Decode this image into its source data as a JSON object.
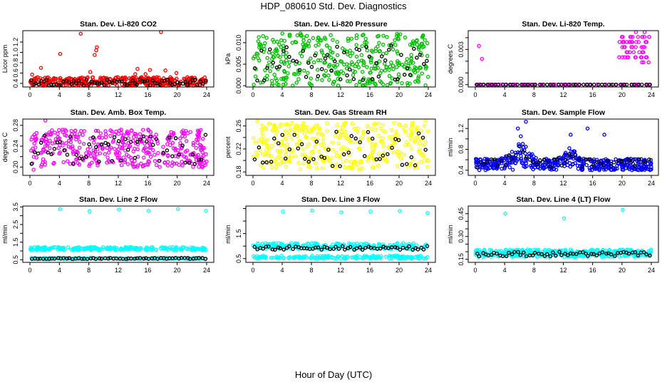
{
  "page": {
    "title": "HDP_080610  Std. Dev. Diagnostics",
    "xlabel": "Hour of Day (UTC)"
  },
  "chart_data": [
    {
      "type": "scatter",
      "title": "Stan. Dev. Li-820 CO2",
      "ylabel": "Licor ppm",
      "xlim": [
        0,
        24
      ],
      "xticks": [
        0,
        4,
        8,
        12,
        16,
        20,
        24
      ],
      "ylim": [
        0.33,
        1.42
      ],
      "yticks": [
        0.4,
        0.6,
        0.8,
        1.0,
        1.2
      ],
      "ytick_labels": [
        "0.4",
        "0.6",
        "0.8",
        "1.0",
        "1.2"
      ],
      "color": "#ff0000",
      "base": {
        "lo": 0.35,
        "hi": 0.52,
        "n": 380
      },
      "black": {
        "lo": 0.36,
        "hi": 0.48,
        "n": 70
      },
      "outliers": [
        {
          "x": 0.3,
          "y": 0.57
        },
        {
          "x": 1.5,
          "y": 0.7
        },
        {
          "x": 4.1,
          "y": 0.97
        },
        {
          "x": 6.9,
          "y": 1.36
        },
        {
          "x": 8.2,
          "y": 0.62
        },
        {
          "x": 8.8,
          "y": 0.95
        },
        {
          "x": 9.1,
          "y": 1.1
        },
        {
          "x": 9.0,
          "y": 1.04
        },
        {
          "x": 14.3,
          "y": 0.58
        },
        {
          "x": 14.6,
          "y": 0.68
        },
        {
          "x": 17.8,
          "y": 1.4
        },
        {
          "x": 15.7,
          "y": 0.58
        },
        {
          "x": 16.3,
          "y": 0.66
        },
        {
          "x": 19.9,
          "y": 0.6
        },
        {
          "x": 18.4,
          "y": 0.65
        }
      ]
    },
    {
      "type": "scatter",
      "title": "Stan. Dev. Li-820 Pressure",
      "ylabel": "kPa",
      "xlim": [
        0,
        24
      ],
      "xticks": [
        0,
        4,
        8,
        12,
        16,
        20,
        24
      ],
      "ylim": [
        -0.0003,
        0.0128
      ],
      "yticks": [
        0,
        0.005,
        0.01
      ],
      "ytick_labels": [
        "0.000",
        "0.005",
        "0.010"
      ],
      "color": "#00c000",
      "base": {
        "lo": 0.0,
        "hi": 0.0122,
        "n": 380
      },
      "black": {
        "lo": 0.0012,
        "hi": 0.0095,
        "n": 55
      },
      "outliers": []
    },
    {
      "type": "scatter",
      "title": "Stan. Dev. Li-820 Temp.",
      "ylabel": "degrees C",
      "xlim": [
        0,
        24
      ],
      "xticks": [
        0,
        4,
        8,
        12,
        16,
        20,
        24
      ],
      "ylim": [
        -0.0002,
        0.0046
      ],
      "yticks": [
        0,
        0.001,
        0.002,
        0.003,
        0.004
      ],
      "ytick_labels": [
        "0.000",
        "",
        "",
        "0.003",
        ""
      ],
      "color": "#ff00ff",
      "base": {
        "lo": 0.0,
        "hi": 0.0,
        "n": 90
      },
      "black": {
        "lo": 0.0,
        "hi": 0.0,
        "n": 48
      },
      "outliers": [
        {
          "x": 0.5,
          "y": 0.0033
        },
        {
          "x": 0.9,
          "y": 0.0022
        }
      ],
      "cluster": {
        "x0": 19.6,
        "x1": 23.8,
        "lo": 0.0019,
        "hi": 0.0045,
        "n": 60
      }
    },
    {
      "type": "scatter",
      "title": "Stan. Dev. Amb. Box Temp.",
      "ylabel": "degrees C",
      "xlim": [
        0,
        24
      ],
      "xticks": [
        0,
        4,
        8,
        12,
        16,
        20,
        24
      ],
      "ylim": [
        0.184,
        0.292
      ],
      "yticks": [
        0.2,
        0.22,
        0.24,
        0.26,
        0.28
      ],
      "ytick_labels": [
        "0.20",
        "",
        "0.24",
        "",
        "0.28"
      ],
      "color": "#ff00ff",
      "base": {
        "lo": 0.2,
        "hi": 0.272,
        "n": 400
      },
      "black": {
        "lo": 0.205,
        "hi": 0.262,
        "n": 55
      },
      "outliers": [
        {
          "x": 2.1,
          "y": 0.29
        },
        {
          "x": 0.5,
          "y": 0.195
        }
      ]
    },
    {
      "type": "scatter",
      "title": "Stan. Dev. Gas Stream RH",
      "ylabel": "percent",
      "xlim": [
        0,
        24
      ],
      "xticks": [
        0,
        4,
        8,
        12,
        16,
        20,
        24
      ],
      "ylim": [
        0.174,
        0.272
      ],
      "yticks": [
        0.18,
        0.2,
        0.22,
        0.24,
        0.26
      ],
      "ytick_labels": [
        "0.18",
        "",
        "0.22",
        "",
        "0.26"
      ],
      "color": "#ffff00",
      "base": {
        "lo": 0.184,
        "hi": 0.266,
        "n": 380
      },
      "black": {
        "lo": 0.19,
        "hi": 0.25,
        "n": 45
      },
      "outliers": [
        {
          "x": 0.6,
          "y": 0.268
        },
        {
          "x": 23.6,
          "y": 0.27
        }
      ]
    },
    {
      "type": "scatter",
      "title": "Stan. Dev. Sample Flow",
      "ylabel": "ml/min",
      "xlim": [
        0,
        24
      ],
      "xticks": [
        0,
        4,
        8,
        12,
        16,
        20,
        24
      ],
      "ylim": [
        0.3,
        1.38
      ],
      "yticks": [
        0.4,
        0.6,
        0.8,
        1.0,
        1.2
      ],
      "ytick_labels": [
        "0.4",
        "",
        "0.8",
        "",
        "1.2"
      ],
      "color": "#0000ff",
      "base": {
        "lo": 0.4,
        "hi": 0.62,
        "n": 420
      },
      "black": {
        "lo": 0.44,
        "hi": 0.62,
        "n": 50
      },
      "outliers": [
        {
          "x": 5.8,
          "y": 1.2
        },
        {
          "x": 6.9,
          "y": 1.33
        },
        {
          "x": 13.0,
          "y": 1.08
        },
        {
          "x": 15.3,
          "y": 1.2
        },
        {
          "x": 17.6,
          "y": 1.08
        },
        {
          "x": 6.2,
          "y": 1.05
        }
      ],
      "hump": [
        {
          "c": 6.2,
          "w": 1.6,
          "a": 0.42
        },
        {
          "c": 13.0,
          "w": 1.0,
          "a": 0.32
        }
      ]
    },
    {
      "type": "scatter",
      "title": "Stan. Dev. Line 2 Flow",
      "ylabel": "ml/min",
      "xlim": [
        0,
        24
      ],
      "xticks": [
        0,
        4,
        8,
        12,
        16,
        20,
        24
      ],
      "ylim": [
        0.35,
        3.55
      ],
      "yticks": [
        0.5,
        1.0,
        1.5,
        2.0,
        2.5,
        3.0,
        3.5
      ],
      "ytick_labels": [
        "0.5",
        "",
        "1.5",
        "",
        "2.5",
        "",
        "3.5"
      ],
      "color": "#00ffff",
      "bands": [
        {
          "lo": 1.05,
          "hi": 1.22,
          "n": 220
        },
        {
          "lo": 0.52,
          "hi": 0.62,
          "n": 150
        }
      ],
      "black": {
        "lo": 0.54,
        "hi": 0.6,
        "n": 60
      },
      "outliers": [
        {
          "x": 4.1,
          "y": 3.38
        },
        {
          "x": 8.1,
          "y": 3.25
        },
        {
          "x": 12.1,
          "y": 3.35
        },
        {
          "x": 16.1,
          "y": 3.28
        },
        {
          "x": 20.1,
          "y": 3.38
        },
        {
          "x": 23.9,
          "y": 3.28
        }
      ]
    },
    {
      "type": "scatter",
      "title": "Stan. Dev. Line 3 Flow",
      "ylabel": "ml/min",
      "xlim": [
        0,
        24
      ],
      "xticks": [
        0,
        4,
        8,
        12,
        16,
        20,
        24
      ],
      "ylim": [
        0.35,
        2.6
      ],
      "yticks": [
        0.5,
        1.0,
        1.5,
        2.0,
        2.5
      ],
      "ytick_labels": [
        "0.5",
        "",
        "1.5",
        "",
        ""
      ],
      "color": "#00ffff",
      "bands": [
        {
          "lo": 0.88,
          "hi": 1.12,
          "n": 230
        },
        {
          "lo": 0.5,
          "hi": 0.62,
          "n": 170
        }
      ],
      "black": {
        "lo": 0.85,
        "hi": 1.0,
        "n": 60
      },
      "outliers": [
        {
          "x": 4.1,
          "y": 2.38
        },
        {
          "x": 8.1,
          "y": 2.42
        },
        {
          "x": 12.1,
          "y": 2.35
        },
        {
          "x": 16.1,
          "y": 2.38
        },
        {
          "x": 20.1,
          "y": 2.4
        },
        {
          "x": 23.9,
          "y": 2.32
        }
      ]
    },
    {
      "type": "scatter",
      "title": "Stan. Dev. Line 4 (LT) Flow",
      "ylabel": "ml/min",
      "xlim": [
        0,
        24
      ],
      "xticks": [
        0,
        4,
        8,
        12,
        16,
        20,
        24
      ],
      "ylim": [
        0.13,
        0.5
      ],
      "yticks": [
        0.15,
        0.2,
        0.25,
        0.3,
        0.35,
        0.4,
        0.45
      ],
      "ytick_labels": [
        "0.15",
        "",
        "",
        "0.30",
        "",
        "",
        "0.45"
      ],
      "color": "#00ffff",
      "bands": [
        {
          "lo": 0.165,
          "hi": 0.215,
          "n": 380
        }
      ],
      "black": {
        "lo": 0.17,
        "hi": 0.2,
        "n": 60
      },
      "outliers": [
        {
          "x": 4.1,
          "y": 0.45
        },
        {
          "x": 12.1,
          "y": 0.42
        },
        {
          "x": 20.1,
          "y": 0.475
        }
      ]
    }
  ]
}
